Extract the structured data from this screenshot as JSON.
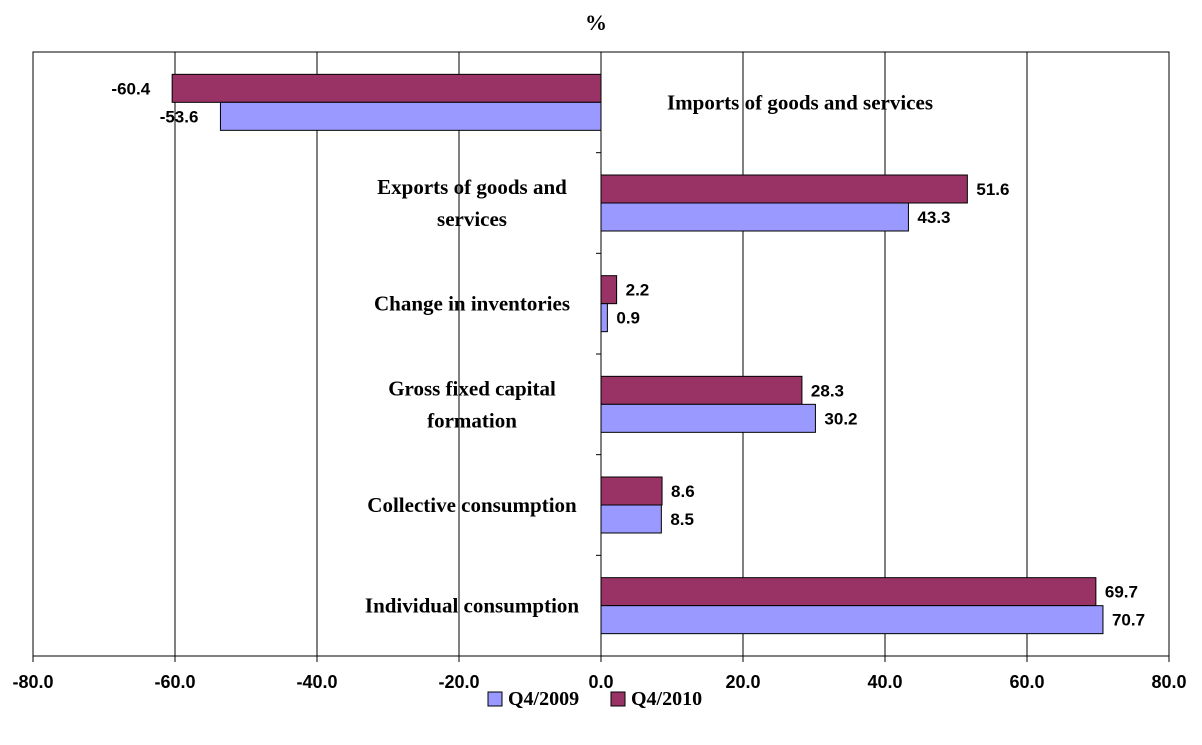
{
  "chart_data": {
    "type": "bar",
    "orientation": "horizontal",
    "unit_label": "%",
    "categories": [
      "Imports of goods and services",
      "Exports of goods and services",
      "Change in inventories",
      "Gross fixed capital formation",
      "Collective consumption",
      "Individual consumption"
    ],
    "series": [
      {
        "name": "Q4/2009",
        "color": "#9999ff",
        "values": [
          -53.6,
          43.3,
          0.9,
          30.2,
          8.5,
          70.7
        ]
      },
      {
        "name": "Q4/2010",
        "color": "#993366",
        "values": [
          -60.4,
          51.6,
          2.2,
          28.3,
          8.6,
          69.7
        ]
      }
    ],
    "xlim": [
      -80,
      80
    ],
    "xticks": [
      -80,
      -60,
      -40,
      -20,
      0,
      20,
      40,
      60,
      80
    ],
    "tick_labels": [
      "-80.0",
      "-60.0",
      "-40.0",
      "-20.0",
      "0.0",
      "20.0",
      "40.0",
      "60.0",
      "80.0"
    ],
    "grid": "vertical",
    "legend_position": "bottom"
  }
}
